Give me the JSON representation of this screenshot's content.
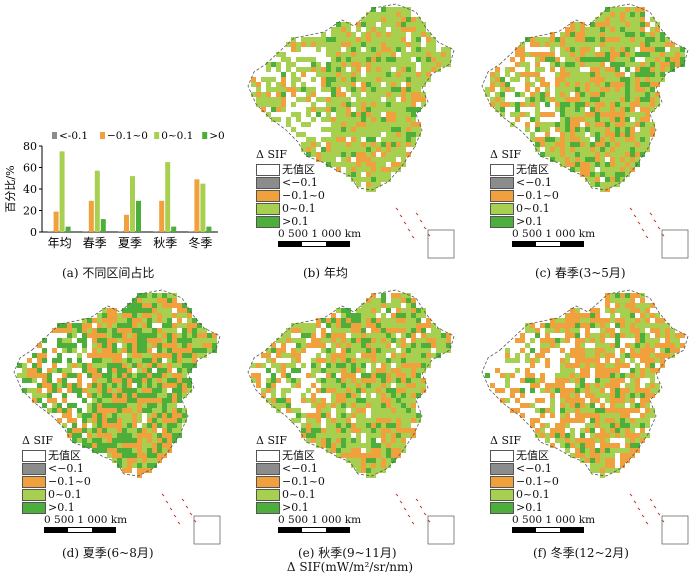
{
  "chart_data": {
    "type": "bar",
    "ylabel": "百分比/%",
    "ylim": [
      0,
      80
    ],
    "yticks": [
      "0",
      "20",
      "40",
      "60",
      "80"
    ],
    "categories": [
      "年均",
      "春季",
      "夏季",
      "秋季",
      "冬季"
    ],
    "series": [
      {
        "name": "<-0.1",
        "color": "#8c8c8c",
        "values": [
          0.3,
          0.3,
          0.3,
          0.3,
          0.3
        ]
      },
      {
        "name": "−0.1~0",
        "color": "#f0a03c",
        "values": [
          19,
          29,
          16,
          29,
          49
        ]
      },
      {
        "name": "0~0.1",
        "color": "#a8d050",
        "values": [
          75,
          57,
          52,
          65,
          45
        ]
      },
      {
        "name": ">0.1",
        "color": "#4caf3c",
        "values": [
          5,
          12,
          29,
          5,
          5
        ]
      }
    ],
    "legend_position": "top"
  },
  "captions": {
    "a": "(a) 不同区间占比",
    "b": "(b) 年均",
    "c": "(c) 春季(3~5月)",
    "d": "(d) 夏季(6~8月)",
    "e": "(e) 秋季(9~11月)",
    "f": "(f) 冬季(12~2月)"
  },
  "map_legend": {
    "title": "Δ SIF",
    "items": [
      {
        "label": "无值区",
        "color": "#ffffff"
      },
      {
        "label": "<−0.1",
        "color": "#8c8c8c"
      },
      {
        "label": "−0.1~0",
        "color": "#f0a03c"
      },
      {
        "label": "0~0.1",
        "color": "#a8d050"
      },
      {
        "label": ">0.1",
        "color": "#4caf3c"
      }
    ],
    "scale_label": "0    500  1 000 km"
  },
  "bottom_label": "Δ SIF(mW/m²/sr/nm)",
  "maps": [
    {
      "id": "b",
      "mix": [
        0.08,
        0.62,
        0.2,
        0.1
      ]
    },
    {
      "id": "c",
      "mix": [
        0.06,
        0.45,
        0.3,
        0.19
      ]
    },
    {
      "id": "d",
      "mix": [
        0.05,
        0.25,
        0.35,
        0.35
      ]
    },
    {
      "id": "e",
      "mix": [
        0.06,
        0.45,
        0.33,
        0.16
      ]
    },
    {
      "id": "f",
      "mix": [
        0.18,
        0.3,
        0.45,
        0.07
      ]
    }
  ]
}
